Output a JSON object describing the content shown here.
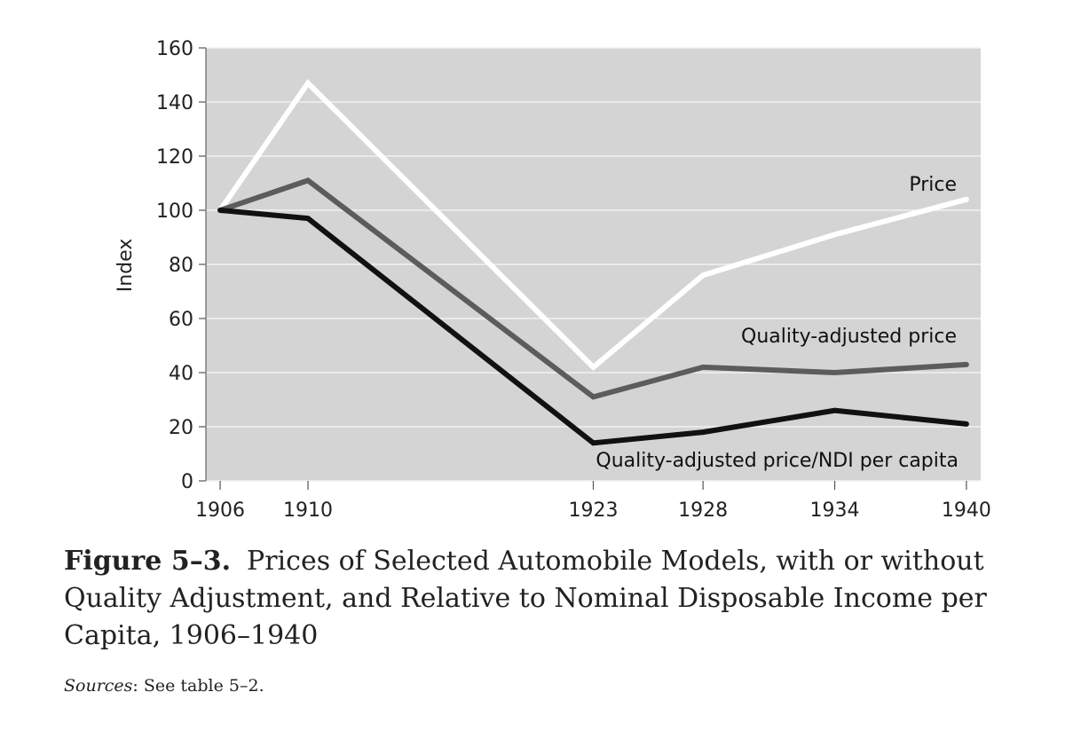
{
  "chart_data": {
    "type": "line",
    "x": [
      1906,
      1910,
      1923,
      1928,
      1934,
      1940
    ],
    "series": [
      {
        "name": "Price",
        "values": [
          100,
          147,
          42,
          76,
          91,
          104
        ],
        "color": "#ffffff"
      },
      {
        "name": "Quality-adjusted price",
        "values": [
          100,
          111,
          31,
          42,
          40,
          43
        ],
        "color": "#5c5c5c"
      },
      {
        "name": "Quality-adjusted price/NDI per capita",
        "values": [
          100,
          97,
          14,
          18,
          26,
          21
        ],
        "color": "#111111"
      }
    ],
    "xticks": [
      "1906",
      "1910",
      "1923",
      "1928",
      "1934",
      "1940"
    ],
    "yticks": [
      "0",
      "20",
      "40",
      "60",
      "80",
      "100",
      "120",
      "140",
      "160"
    ],
    "ylim": [
      0,
      160
    ],
    "ylabel": "Index",
    "xlabel": "",
    "grid": true,
    "plot_background": "#d4d4d4",
    "grid_color": "#f2f2f2"
  },
  "caption": {
    "figure_number": "Figure 5–3.",
    "title": "Prices of Selected Automobile Models, with or without Quality Adjustment, and Relative to Nominal Disposable Income per Capita, 1906–1940"
  },
  "sources": {
    "label": "Sources",
    "text": ": See table 5–2."
  }
}
